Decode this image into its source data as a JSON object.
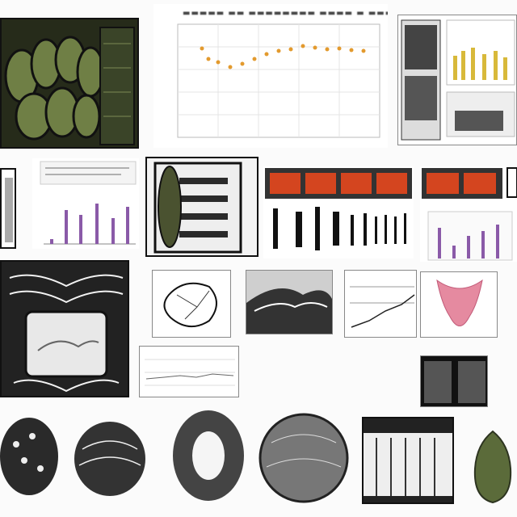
{
  "collage": {
    "description_panels": [
      "scale-texture-scan",
      "line-chart",
      "bar-strip-panel",
      "gauge-panel",
      "bar-chart-left",
      "scan-network-panel",
      "red-blocks-panel",
      "bar-chart-right",
      "ornate-frame",
      "vessel-sketch",
      "bone-scan",
      "graph-panel-center",
      "pink-scan",
      "line-chart-small",
      "xray-pair",
      "coral-sphere-1",
      "coral-sphere-2",
      "ring-texture",
      "shell-texture",
      "building-photo",
      "avocado-photo"
    ],
    "colors": {
      "moss": "#5b6b3a",
      "dark": "#1a1a1a",
      "orange_line": "#e39a2e",
      "purple_bar": "#8a5aa8",
      "yellow_bar": "#d8b93a",
      "red_block": "#d4451f",
      "pink": "#e58aa0"
    }
  }
}
